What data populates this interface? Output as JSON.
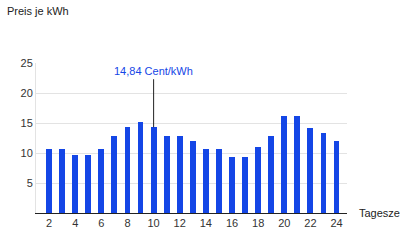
{
  "chart_data": {
    "type": "bar",
    "y_label": "Preis je kWh",
    "x_label": "Tageszeit",
    "x": [
      2,
      3,
      4,
      5,
      6,
      7,
      8,
      9,
      10,
      11,
      12,
      13,
      14,
      15,
      16,
      17,
      18,
      19,
      20,
      21,
      22,
      23,
      24
    ],
    "values": [
      10.6,
      10.6,
      9.7,
      9.7,
      10.6,
      12.9,
      14.3,
      15.2,
      14.3,
      12.9,
      12.9,
      12.0,
      10.6,
      10.6,
      9.3,
      9.3,
      11.0,
      12.9,
      16.1,
      16.1,
      14.1,
      13.3,
      12.0
    ],
    "color": "#1446e6",
    "xlim": [
      1,
      24.8
    ],
    "xticks": [
      2,
      4,
      6,
      8,
      10,
      12,
      14,
      16,
      18,
      20,
      22,
      24
    ],
    "ylim": [
      0,
      25
    ],
    "yticks": [
      5,
      10,
      15,
      20,
      25
    ],
    "grid": true,
    "annotations": [
      {
        "text": "14,84 Cent/kWh",
        "x": 10
      }
    ]
  }
}
